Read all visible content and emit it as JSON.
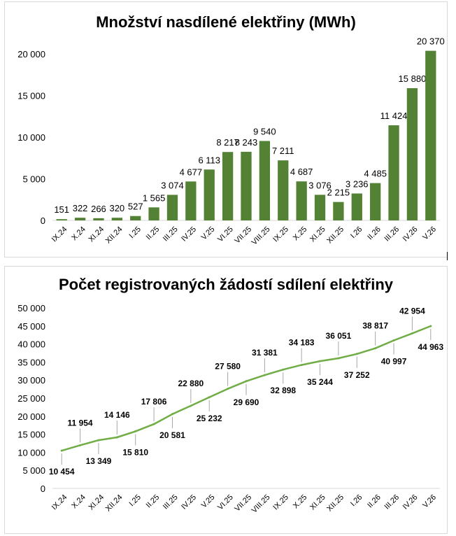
{
  "chart_data": [
    {
      "type": "bar",
      "title": "Množství nasdílené elektřiny (MWh)",
      "categories": [
        "IX.24",
        "X.24",
        "XI.24",
        "XII.24",
        "I.25",
        "II.25",
        "III.25",
        "IV.25",
        "V.25",
        "VI.25",
        "VII.25",
        "VIII.25",
        "IX.25",
        "X.25",
        "XI.25",
        "XII.25",
        "I.26",
        "II.26",
        "III.26",
        "IV.26",
        "V.26"
      ],
      "values": [
        151,
        322,
        266,
        320,
        527,
        1565,
        3074,
        4677,
        6113,
        8217,
        8243,
        9540,
        7211,
        4687,
        3076,
        2215,
        3236,
        4485,
        11424,
        15880,
        20370
      ],
      "value_labels": [
        "151",
        "322",
        "266",
        "320",
        "527",
        "1 565",
        "3 074",
        "4 677",
        "6 113",
        "8 217",
        "8 243",
        "9 540",
        "7 211",
        "4 687",
        "3 076",
        "2 215",
        "3 236",
        "4 485",
        "11 424",
        "15 880",
        "20 370"
      ],
      "ylim": [
        0,
        20000
      ],
      "yticks": [
        0,
        5000,
        10000,
        15000,
        20000
      ],
      "ytick_labels": [
        "0",
        "5 000",
        "10 000",
        "15 000",
        "20 000"
      ],
      "grid": false,
      "color": "#548235"
    },
    {
      "type": "line",
      "title": "Počet registrovaných žádostí sdílení elektřiny",
      "categories": [
        "IX.24",
        "X.24",
        "XI.24",
        "XII.24",
        "I.25",
        "II.25",
        "III.25",
        "IV.25",
        "V.25",
        "VI.25",
        "VII.25",
        "VIII.25",
        "IX.25",
        "X.25",
        "XI.25",
        "XII.25",
        "I.26",
        "II.26",
        "III.26",
        "IV.26",
        "V.26"
      ],
      "values": [
        10454,
        11954,
        13349,
        14146,
        15810,
        17806,
        20581,
        22880,
        25232,
        27580,
        29690,
        31381,
        32898,
        34183,
        35244,
        36051,
        37252,
        38817,
        40997,
        42954,
        44963
      ],
      "point_labels": [
        {
          "index": 0,
          "text": "10 454",
          "pos": "below"
        },
        {
          "index": 1,
          "text": "11 954",
          "pos": "above"
        },
        {
          "index": 2,
          "text": "13 349",
          "pos": "below"
        },
        {
          "index": 3,
          "text": "14 146",
          "pos": "above"
        },
        {
          "index": 4,
          "text": "15 810",
          "pos": "below"
        },
        {
          "index": 5,
          "text": "17 806",
          "pos": "above"
        },
        {
          "index": 6,
          "text": "20 581",
          "pos": "below"
        },
        {
          "index": 7,
          "text": "22 880",
          "pos": "above"
        },
        {
          "index": 8,
          "text": "25 232",
          "pos": "below"
        },
        {
          "index": 9,
          "text": "27 580",
          "pos": "above"
        },
        {
          "index": 10,
          "text": "29 690",
          "pos": "below"
        },
        {
          "index": 11,
          "text": "31 381",
          "pos": "above"
        },
        {
          "index": 12,
          "text": "32 898",
          "pos": "below"
        },
        {
          "index": 13,
          "text": "34 183",
          "pos": "above"
        },
        {
          "index": 14,
          "text": "35 244",
          "pos": "below"
        },
        {
          "index": 15,
          "text": "36 051",
          "pos": "above"
        },
        {
          "index": 16,
          "text": "37 252",
          "pos": "below"
        },
        {
          "index": 17,
          "text": "38 817",
          "pos": "above"
        },
        {
          "index": 18,
          "text": "40 997",
          "pos": "below"
        },
        {
          "index": 19,
          "text": "42 954",
          "pos": "above"
        },
        {
          "index": 20,
          "text": "44 963",
          "pos": "below"
        }
      ],
      "ylim": [
        0,
        50000
      ],
      "yticks": [
        0,
        5000,
        10000,
        15000,
        20000,
        25000,
        30000,
        35000,
        40000,
        45000,
        50000
      ],
      "ytick_labels": [
        "0",
        "5 000",
        "10 000",
        "15 000",
        "20 000",
        "25 000",
        "30 000",
        "35 000",
        "40 000",
        "45 000",
        "50 000"
      ],
      "grid": false,
      "color": "#70ad47"
    }
  ]
}
